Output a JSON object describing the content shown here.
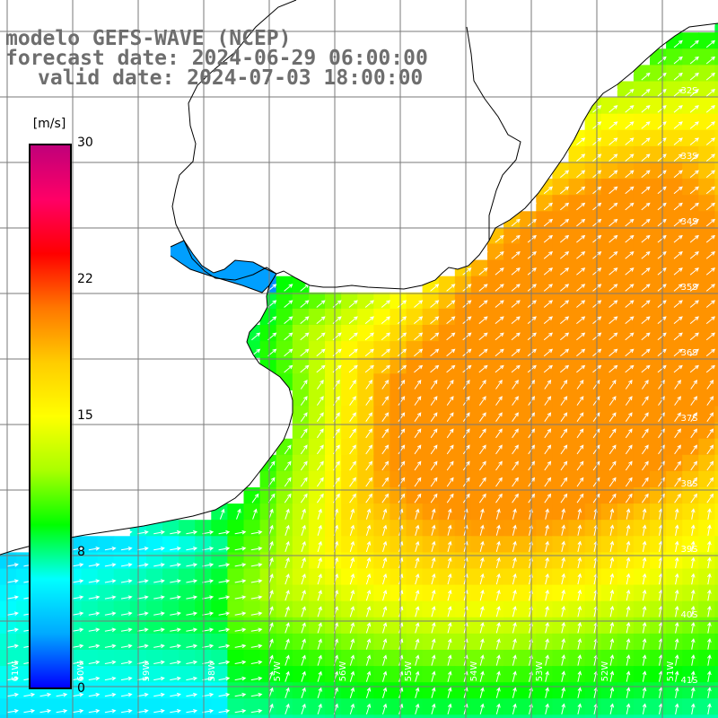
{
  "title": {
    "model": "modelo GEFS-WAVE (NCEP)",
    "forecast": "forecast date: 2024-06-29 06:00:00",
    "valid": "valid date: 2024-07-03 18:00:00"
  },
  "colorbar": {
    "unit": "[m/s]",
    "ticks": [
      "30",
      "22",
      "15",
      "8",
      "0"
    ],
    "values": [
      30,
      22,
      15,
      8,
      0
    ],
    "colors": [
      "#0000ff",
      "#00aaff",
      "#00ffff",
      "#00ff00",
      "#aaff00",
      "#ffff00",
      "#ffcc00",
      "#ff7700",
      "#ff0000",
      "#ff0066",
      "#c0007a"
    ]
  },
  "map": {
    "lat_labels": [
      "32S",
      "33S",
      "34S",
      "35S",
      "36S",
      "37S",
      "38S",
      "39S",
      "40S",
      "41S"
    ],
    "lon_labels": [
      "61W",
      "60W",
      "59W",
      "58W",
      "57W",
      "56W",
      "55W",
      "54W",
      "53W",
      "52W",
      "51W"
    ],
    "grid": true,
    "land_color": "#ffffff",
    "coast_color": "#000000",
    "arrow_color": "#ffffff",
    "grid_color": "#7a7a7a",
    "variable": "wind speed"
  }
}
